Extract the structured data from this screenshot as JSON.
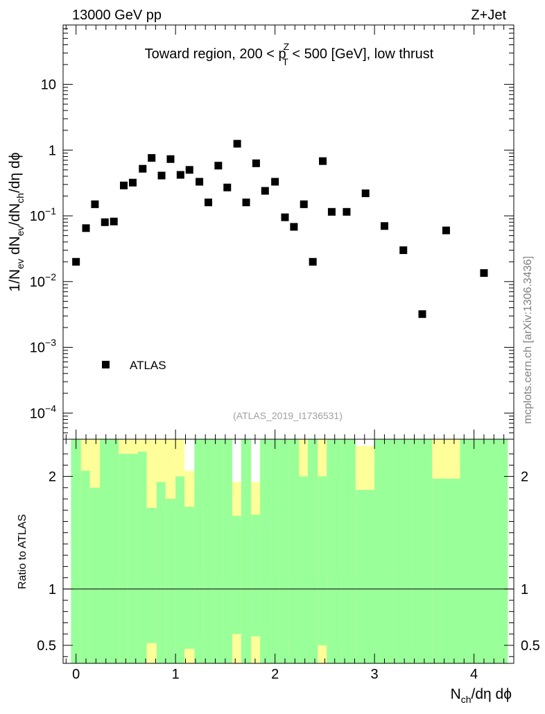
{
  "header": {
    "energy_label": "13000 GeV pp",
    "process_label": "Z+Jet",
    "region_prefix": "Toward region, 200 < p",
    "region_sup": "Z",
    "region_sub": "T",
    "region_suffix": " < 500 [GeV], low thrust",
    "analysis_id": "(ATLAS_2019_I1736531)",
    "side_label": "mcplots.cern.ch [arXiv:1306.3436]"
  },
  "colors": {
    "band_stat": "#99ff99",
    "band_syst": "#ffff99",
    "marker": "#000000"
  },
  "chart_data": [
    {
      "type": "scatter",
      "panel": "main",
      "y_scale": "log",
      "xlim": [
        -0.13,
        4.4
      ],
      "ylim": [
        4e-05,
        80
      ],
      "ylabel": {
        "parts": [
          {
            "t": "1/N",
            "s": ""
          },
          {
            "t": "ev",
            "s": "sub"
          },
          {
            "t": " dN",
            "s": ""
          },
          {
            "t": "ev",
            "s": "sub"
          },
          {
            "t": "/dN",
            "s": ""
          },
          {
            "t": "ch",
            "s": "sub"
          },
          {
            "t": "/dη dϕ",
            "s": ""
          }
        ]
      },
      "y_ticks": [
        {
          "v": 10,
          "label": "10",
          "exp": ""
        },
        {
          "v": 1,
          "label": "1",
          "exp": ""
        },
        {
          "v": 0.1,
          "label": "10",
          "exp": "−1"
        },
        {
          "v": 0.01,
          "label": "10",
          "exp": "−2"
        },
        {
          "v": 0.001,
          "label": "10",
          "exp": "−3"
        },
        {
          "v": 0.0001,
          "label": "10",
          "exp": "−4"
        }
      ],
      "legend": {
        "label": "ATLAS",
        "placement": "bottom-left"
      },
      "series": [
        {
          "name": "ATLAS",
          "points": [
            [
              0.0,
              0.02
            ],
            [
              0.1,
              0.065
            ],
            [
              0.19,
              0.15
            ],
            [
              0.29,
              0.08
            ],
            [
              0.38,
              0.082
            ],
            [
              0.48,
              0.29
            ],
            [
              0.57,
              0.32
            ],
            [
              0.67,
              0.52
            ],
            [
              0.76,
              0.76
            ],
            [
              0.86,
              0.41
            ],
            [
              0.95,
              0.73
            ],
            [
              1.05,
              0.42
            ],
            [
              1.14,
              0.5
            ],
            [
              1.24,
              0.33
            ],
            [
              1.33,
              0.16
            ],
            [
              1.43,
              0.58
            ],
            [
              1.52,
              0.27
            ],
            [
              1.62,
              1.25
            ],
            [
              1.71,
              0.16
            ],
            [
              1.81,
              0.63
            ],
            [
              1.9,
              0.24
            ],
            [
              2.0,
              0.33
            ],
            [
              2.1,
              0.095
            ],
            [
              2.19,
              0.068
            ],
            [
              2.29,
              0.15
            ],
            [
              2.38,
              0.02
            ],
            [
              2.48,
              0.68
            ],
            [
              2.57,
              0.115
            ],
            [
              2.72,
              0.115
            ],
            [
              2.91,
              0.22
            ],
            [
              3.1,
              0.07
            ],
            [
              3.29,
              0.03
            ],
            [
              3.48,
              0.0032
            ],
            [
              3.72,
              0.06
            ],
            [
              4.1,
              0.0135
            ]
          ]
        }
      ]
    },
    {
      "type": "area",
      "panel": "ratio",
      "xlim": [
        -0.13,
        4.4
      ],
      "ylim": [
        0.34,
        2.33
      ],
      "ylabel": "Ratio to ATLAS",
      "xlabel": {
        "parts": [
          {
            "t": "N",
            "s": ""
          },
          {
            "t": "ch",
            "s": "sub"
          },
          {
            "t": "/dη dϕ",
            "s": ""
          }
        ]
      },
      "x_ticks": [
        {
          "v": 0,
          "label": "0"
        },
        {
          "v": 1,
          "label": "1"
        },
        {
          "v": 2,
          "label": "2"
        },
        {
          "v": 3,
          "label": "3"
        },
        {
          "v": 4,
          "label": "4"
        }
      ],
      "y_ticks": [
        {
          "v": 2,
          "label": "2"
        },
        {
          "v": 1,
          "label": "1"
        },
        {
          "v": 0.5,
          "label": "0.5"
        }
      ],
      "reference_line": 1,
      "bins": [
        {
          "lo": -0.05,
          "hi": 0.05,
          "stat_lo": 0.34,
          "stat_hi": 2.33,
          "syst_lo": 0.34,
          "syst_hi": 2.33
        },
        {
          "lo": 0.05,
          "hi": 0.14,
          "stat_lo": 0.34,
          "stat_hi": 2.05,
          "syst_lo": 0.34,
          "syst_hi": 2.33
        },
        {
          "lo": 0.14,
          "hi": 0.24,
          "stat_lo": 0.34,
          "stat_hi": 1.9,
          "syst_lo": 0.34,
          "syst_hi": 2.33
        },
        {
          "lo": 0.24,
          "hi": 0.33,
          "stat_lo": 0.34,
          "stat_hi": 2.33,
          "syst_lo": 0.34,
          "syst_hi": 2.33
        },
        {
          "lo": 0.33,
          "hi": 0.43,
          "stat_lo": 0.34,
          "stat_hi": 2.33,
          "syst_lo": 0.34,
          "syst_hi": 2.33
        },
        {
          "lo": 0.43,
          "hi": 0.52,
          "stat_lo": 0.34,
          "stat_hi": 2.2,
          "syst_lo": 0.34,
          "syst_hi": 2.33
        },
        {
          "lo": 0.52,
          "hi": 0.62,
          "stat_lo": 0.34,
          "stat_hi": 2.2,
          "syst_lo": 0.34,
          "syst_hi": 2.33
        },
        {
          "lo": 0.62,
          "hi": 0.71,
          "stat_lo": 0.34,
          "stat_hi": 2.22,
          "syst_lo": 0.34,
          "syst_hi": 2.33
        },
        {
          "lo": 0.71,
          "hi": 0.81,
          "stat_lo": 0.52,
          "stat_hi": 1.72,
          "syst_lo": 0.34,
          "syst_hi": 2.33
        },
        {
          "lo": 0.81,
          "hi": 0.9,
          "stat_lo": 0.34,
          "stat_hi": 1.95,
          "syst_lo": 0.34,
          "syst_hi": 2.33
        },
        {
          "lo": 0.9,
          "hi": 1.0,
          "stat_lo": 0.34,
          "stat_hi": 1.8,
          "syst_lo": 0.34,
          "syst_hi": 2.33
        },
        {
          "lo": 1.0,
          "hi": 1.09,
          "stat_lo": 0.34,
          "stat_hi": 2.0,
          "syst_lo": 0.34,
          "syst_hi": 2.33
        },
        {
          "lo": 1.09,
          "hi": 1.19,
          "stat_lo": 0.47,
          "stat_hi": 1.73,
          "syst_lo": 0.34,
          "syst_hi": 2.05
        },
        {
          "lo": 1.19,
          "hi": 1.28,
          "stat_lo": 0.34,
          "stat_hi": 2.33,
          "syst_lo": 0.34,
          "syst_hi": 2.33
        },
        {
          "lo": 1.28,
          "hi": 1.38,
          "stat_lo": 0.34,
          "stat_hi": 2.33,
          "syst_lo": 0.34,
          "syst_hi": 2.33
        },
        {
          "lo": 1.38,
          "hi": 1.47,
          "stat_lo": 0.34,
          "stat_hi": 2.33,
          "syst_lo": 0.34,
          "syst_hi": 2.33
        },
        {
          "lo": 1.47,
          "hi": 1.57,
          "stat_lo": 0.34,
          "stat_hi": 2.33,
          "syst_lo": 0.34,
          "syst_hi": 2.33
        },
        {
          "lo": 1.57,
          "hi": 1.66,
          "stat_lo": 0.6,
          "stat_hi": 1.65,
          "syst_lo": 0.34,
          "syst_hi": 1.95
        },
        {
          "lo": 1.66,
          "hi": 1.76,
          "stat_lo": 0.34,
          "stat_hi": 2.33,
          "syst_lo": 0.34,
          "syst_hi": 2.33
        },
        {
          "lo": 1.76,
          "hi": 1.85,
          "stat_lo": 0.58,
          "stat_hi": 1.66,
          "syst_lo": 0.34,
          "syst_hi": 1.95
        },
        {
          "lo": 1.85,
          "hi": 1.95,
          "stat_lo": 0.34,
          "stat_hi": 2.33,
          "syst_lo": 0.34,
          "syst_hi": 2.33
        },
        {
          "lo": 1.95,
          "hi": 2.04,
          "stat_lo": 0.34,
          "stat_hi": 2.33,
          "syst_lo": 0.34,
          "syst_hi": 2.33
        },
        {
          "lo": 2.04,
          "hi": 2.14,
          "stat_lo": 0.34,
          "stat_hi": 2.33,
          "syst_lo": 0.34,
          "syst_hi": 2.33
        },
        {
          "lo": 2.14,
          "hi": 2.24,
          "stat_lo": 0.34,
          "stat_hi": 2.33,
          "syst_lo": 0.34,
          "syst_hi": 2.33
        },
        {
          "lo": 2.24,
          "hi": 2.33,
          "stat_lo": 0.34,
          "stat_hi": 2.0,
          "syst_lo": 0.34,
          "syst_hi": 2.33
        },
        {
          "lo": 2.33,
          "hi": 2.43,
          "stat_lo": 0.34,
          "stat_hi": 2.33,
          "syst_lo": 0.34,
          "syst_hi": 2.33
        },
        {
          "lo": 2.43,
          "hi": 2.52,
          "stat_lo": 0.5,
          "stat_hi": 2.0,
          "syst_lo": 0.34,
          "syst_hi": 2.33
        },
        {
          "lo": 2.52,
          "hi": 2.67,
          "stat_lo": 0.34,
          "stat_hi": 2.33,
          "syst_lo": 0.34,
          "syst_hi": 2.33
        },
        {
          "lo": 2.67,
          "hi": 2.81,
          "stat_lo": 0.34,
          "stat_hi": 2.33,
          "syst_lo": 0.34,
          "syst_hi": 2.33
        },
        {
          "lo": 2.81,
          "hi": 3.0,
          "stat_lo": 0.34,
          "stat_hi": 1.88,
          "syst_lo": 0.34,
          "syst_hi": 2.27
        },
        {
          "lo": 3.0,
          "hi": 3.19,
          "stat_lo": 0.34,
          "stat_hi": 2.33,
          "syst_lo": 0.34,
          "syst_hi": 2.33
        },
        {
          "lo": 3.19,
          "hi": 3.38,
          "stat_lo": 0.34,
          "stat_hi": 2.33,
          "syst_lo": 0.34,
          "syst_hi": 2.33
        },
        {
          "lo": 3.38,
          "hi": 3.58,
          "stat_lo": 0.34,
          "stat_hi": 2.33,
          "syst_lo": 0.34,
          "syst_hi": 2.33
        },
        {
          "lo": 3.58,
          "hi": 3.86,
          "stat_lo": 0.34,
          "stat_hi": 1.98,
          "syst_lo": 0.34,
          "syst_hi": 2.33
        },
        {
          "lo": 3.86,
          "hi": 4.34,
          "stat_lo": 0.34,
          "stat_hi": 2.33,
          "syst_lo": 0.34,
          "syst_hi": 2.33
        }
      ]
    }
  ]
}
